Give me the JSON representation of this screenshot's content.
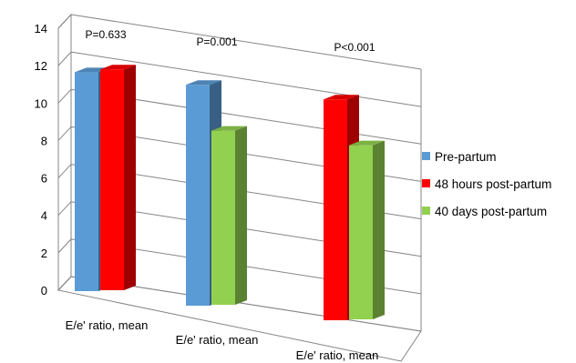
{
  "chart_data": {
    "type": "bar",
    "title": "",
    "xlabel": "",
    "ylabel": "",
    "ylim": [
      0,
      14
    ],
    "yticks": [
      0,
      2,
      4,
      6,
      8,
      10,
      12,
      14
    ],
    "grid": true,
    "legend_position": "right",
    "groups": [
      {
        "category": "E/e' ratio, mean",
        "annotation": "P=0.633",
        "bars": [
          {
            "series": "Pre-partum",
            "value": 11.7
          },
          {
            "series": "48 hours post-partum",
            "value": 11.8
          }
        ]
      },
      {
        "category": "E/e' ratio, mean",
        "annotation": "P=0.001",
        "bars": [
          {
            "series": "Pre-partum",
            "value": 11.8
          },
          {
            "series": "40 days post-partum",
            "value": 9.3
          }
        ]
      },
      {
        "category": "E/e' ratio, mean",
        "annotation": "P<0.001",
        "bars": [
          {
            "series": "48 hours post-partum",
            "value": 11.8
          },
          {
            "series": "40 days post-partum",
            "value": 9.3
          }
        ]
      }
    ],
    "series": [
      {
        "name": "Pre-partum",
        "color": "#5B9BD5"
      },
      {
        "name": "48 hours post-partum",
        "color": "#FF0000"
      },
      {
        "name": "40 days post-partum",
        "color": "#92D050"
      }
    ]
  }
}
